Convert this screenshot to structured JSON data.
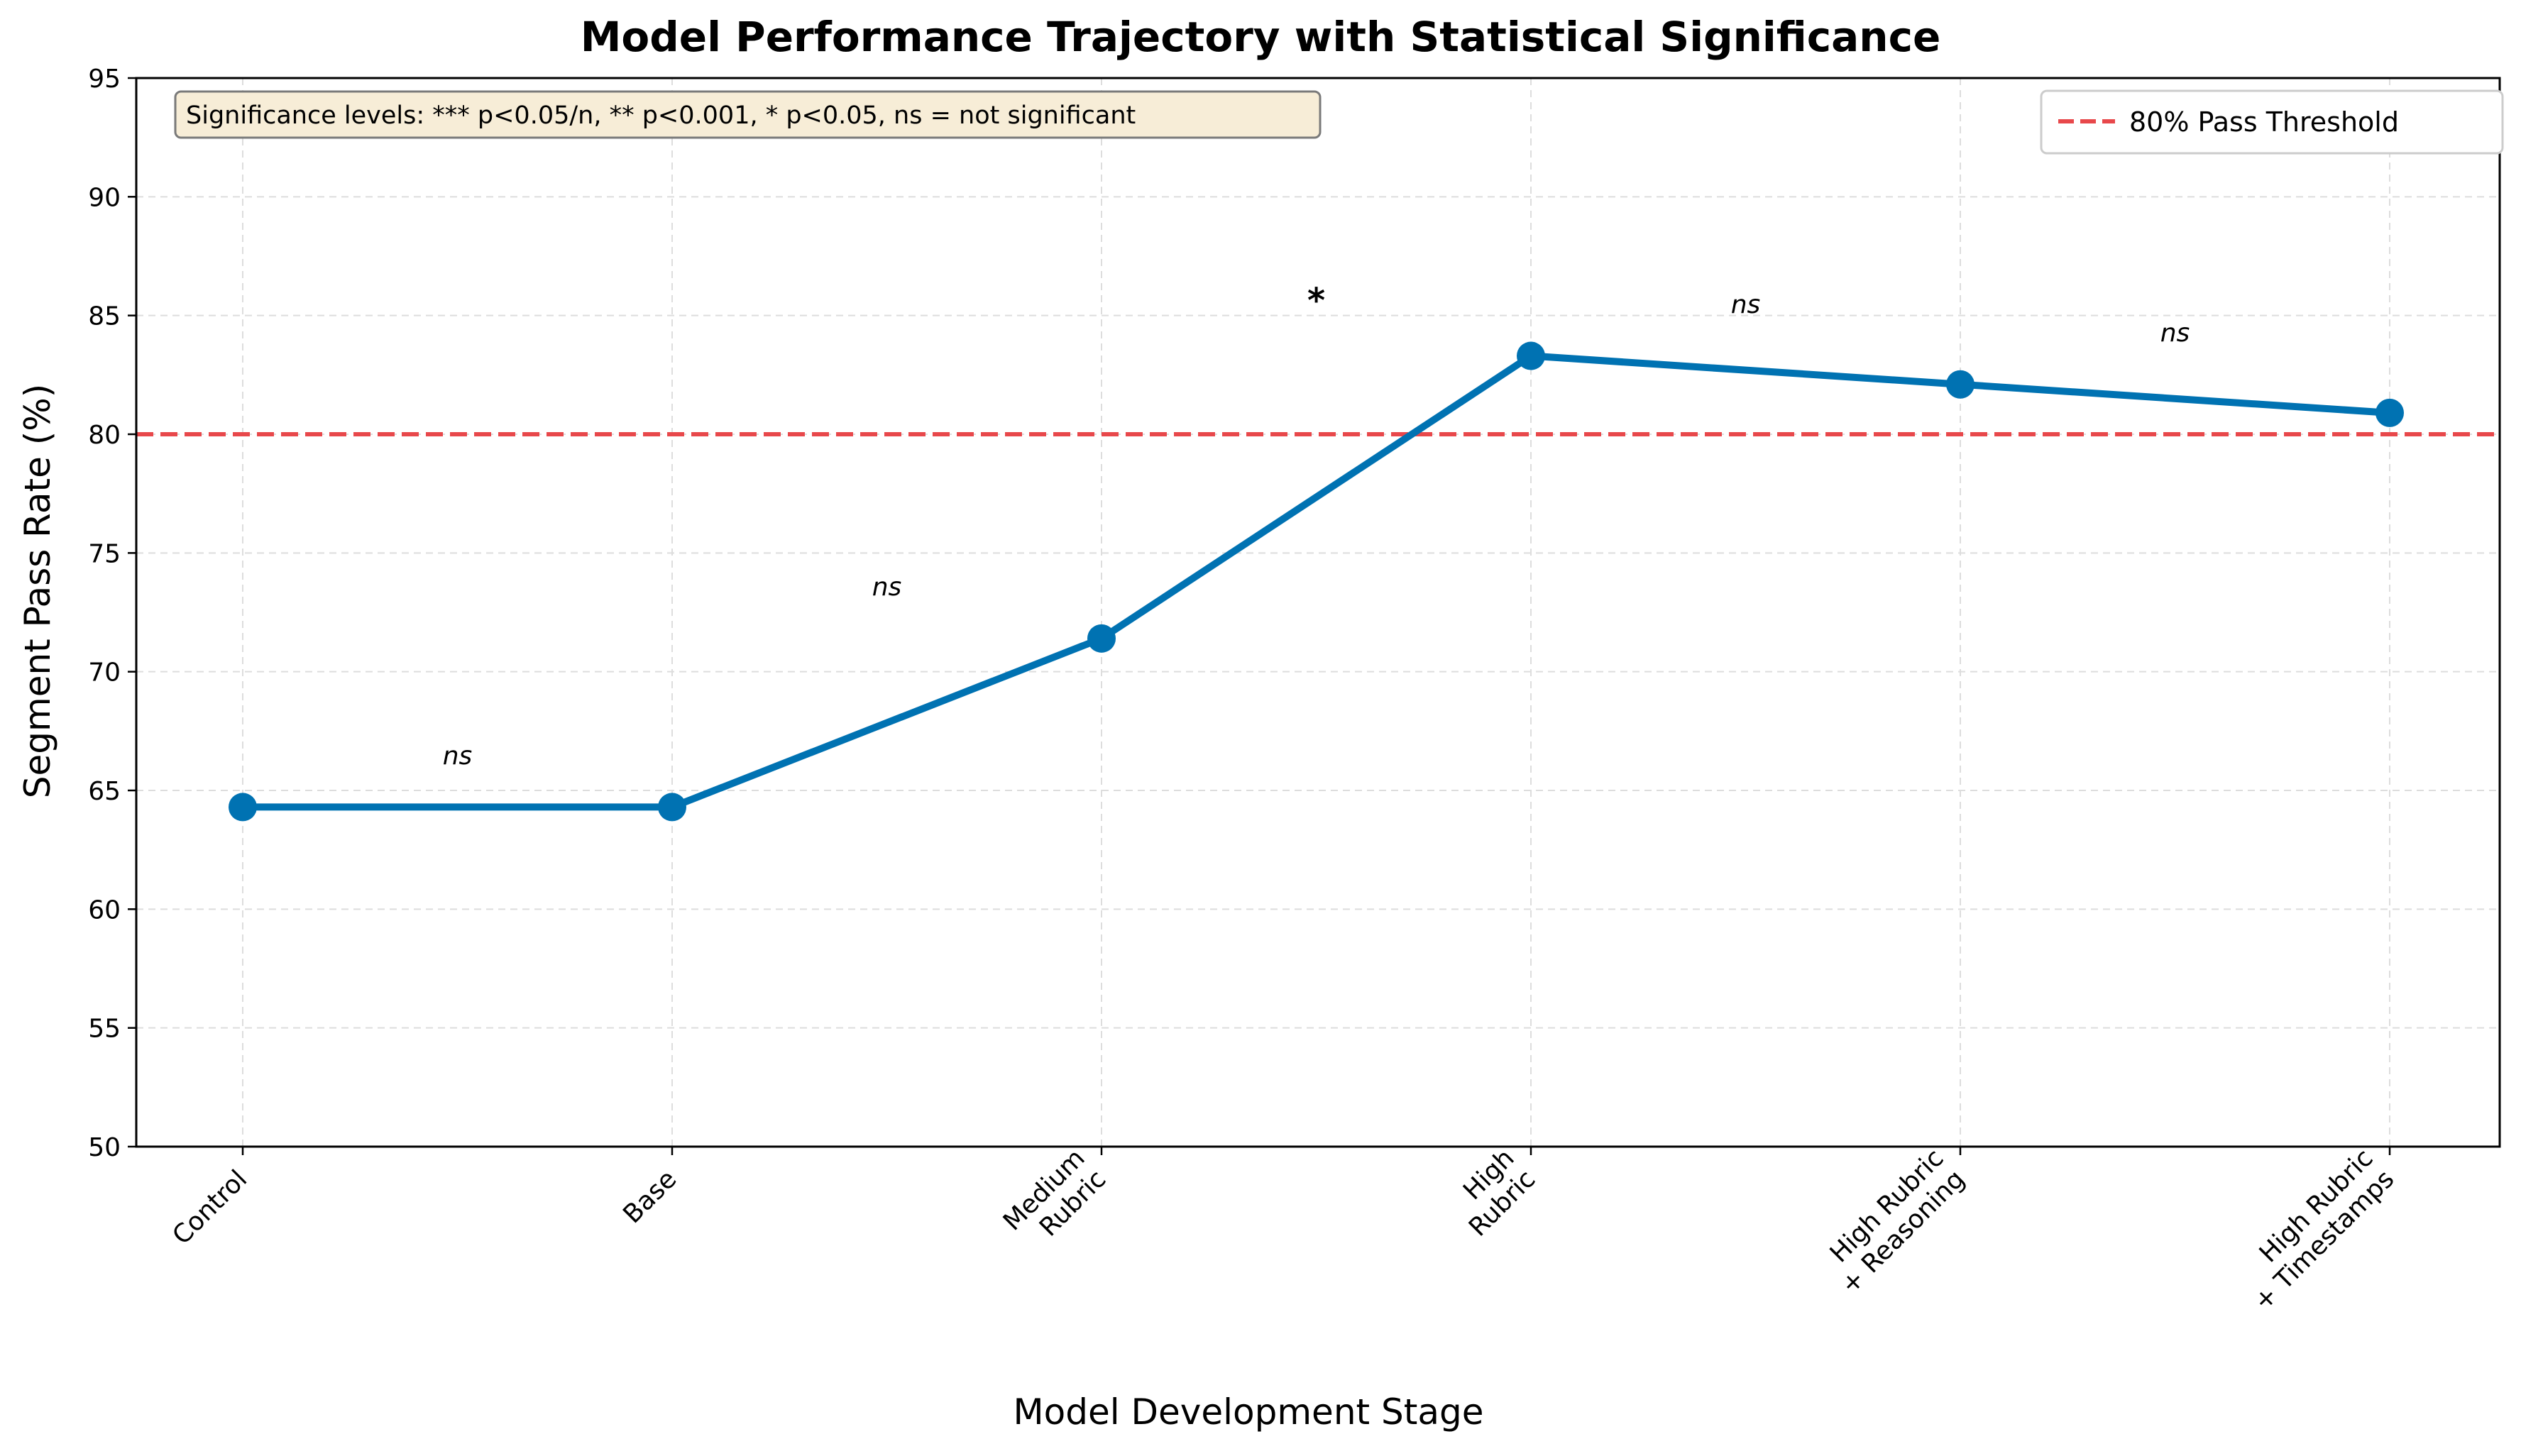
{
  "chart_data": {
    "type": "line",
    "title": "Model Performance Trajectory with Statistical Significance",
    "xlabel": "Model Development Stage",
    "ylabel": "Segment Pass Rate (%)",
    "ylim": [
      50,
      95
    ],
    "yticks": [
      50,
      55,
      60,
      65,
      70,
      75,
      80,
      85,
      90,
      95
    ],
    "grid": true,
    "categories": [
      [
        "Control"
      ],
      [
        "Base"
      ],
      [
        "Medium",
        "Rubric"
      ],
      [
        "High",
        "Rubric"
      ],
      [
        "High Rubric",
        "+ Reasoning"
      ],
      [
        "High Rubric",
        "+ Timestamps"
      ]
    ],
    "series": [
      {
        "values": [
          64.3,
          64.3,
          71.4,
          83.3,
          82.1,
          80.9
        ],
        "color": "#0072B2"
      }
    ],
    "threshold": {
      "value": 80,
      "label": "80% Pass Threshold",
      "color": "#E8484B",
      "style": "dashed"
    },
    "significance": [
      {
        "between": [
          0,
          1
        ],
        "label": "ns",
        "y": 66.5
      },
      {
        "between": [
          1,
          2
        ],
        "label": "ns",
        "y": 73.6
      },
      {
        "between": [
          2,
          3
        ],
        "label": "*",
        "y": 85.8
      },
      {
        "between": [
          3,
          4
        ],
        "label": "ns",
        "y": 85.5
      },
      {
        "between": [
          4,
          5
        ],
        "label": "ns",
        "y": 84.3
      }
    ],
    "note": "Significance levels: *** p<0.05/n, ** p<0.001, * p<0.05, ns = not significant",
    "legend_position": "top-right"
  }
}
